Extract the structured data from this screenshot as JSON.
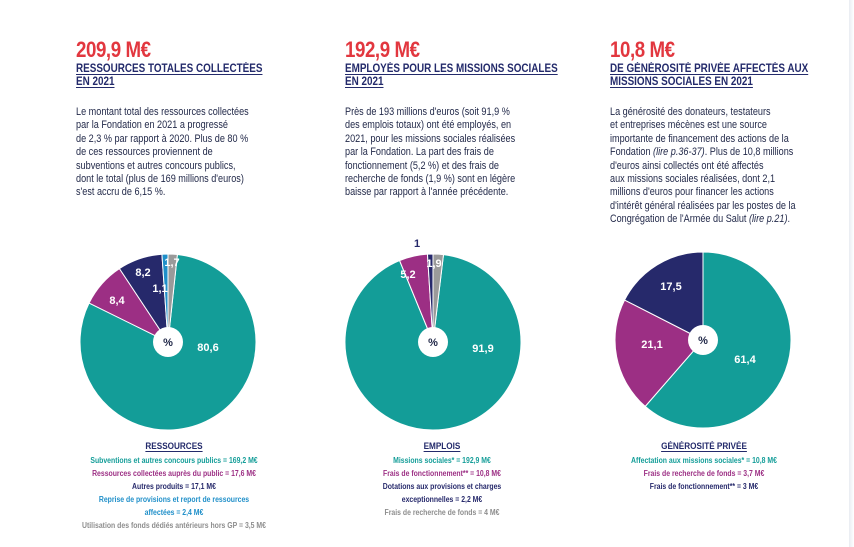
{
  "columns": [
    {
      "amount": "209,9 M€",
      "heading": [
        "RESSOURCES TOTALES COLLECTÉES",
        "EN 2021"
      ],
      "body": [
        "Le montant total des ressources collectées",
        "par la Fondation en 2021 a progressé",
        "de 2,3 % par rapport à 2020. Plus de 80 %",
        "de ces ressources proviennent de",
        "subventions et autres concours publics,",
        "dont le total (plus de 169 millions d'euros)",
        "s'est accru de 6,15 %."
      ],
      "center_label": "%",
      "legend_title": "RESSOURCES",
      "legend": [
        {
          "text": "Subventions et autres concours publics = 169,2 M€",
          "color": "#139d98"
        },
        {
          "text": "Ressources collectées auprès du public = 17,6 M€",
          "color": "#9c2f84"
        },
        {
          "text": "Autres produits = 17,1 M€",
          "color": "#26296b"
        },
        {
          "text": "Reprise de provisions et report de ressources",
          "color": "#1f8fc9"
        },
        {
          "text": "affectées = 2,4 M€",
          "color": "#1f8fc9"
        },
        {
          "text": "Utilisation des fonds dédiés antérieurs hors GP = 3,5 M€",
          "color": "#8d8d8d"
        }
      ]
    },
    {
      "amount": "192,9 M€",
      "heading": [
        "EMPLOYÉS POUR LES MISSIONS SOCIALES",
        "EN 2021"
      ],
      "body": [
        "Près de 193 millions d'euros (soit 91,9 %",
        "des emplois totaux) ont été employés, en",
        "2021, pour les missions sociales réalisées",
        "par la Fondation. La part des frais de",
        "fonctionnement (5,2 %) et des frais de",
        "recherche de fonds (1,9 %) sont en légère",
        "baisse par rapport à l'année précédente."
      ],
      "center_label": "%",
      "legend_title": "EMPLOIS",
      "legend": [
        {
          "text": "Missions sociales* = 192,9 M€",
          "color": "#139d98"
        },
        {
          "text": "Frais de fonctionnement** = 10,8 M€",
          "color": "#9c2f84"
        },
        {
          "text": "Dotations aux provisions et charges",
          "color": "#26296b"
        },
        {
          "text": "exceptionnelles = 2,2 M€",
          "color": "#26296b"
        },
        {
          "text": "Frais de recherche de fonds = 4 M€",
          "color": "#8d8d8d"
        }
      ]
    },
    {
      "amount": "10,8 M€",
      "heading": [
        "DE GÉNÉROSITÉ PRIVÉE AFFECTÉS AUX",
        "MISSIONS SOCIALES EN 2021"
      ],
      "body": [
        "La générosité des donateurs, testateurs",
        "et entreprises mécènes est une source",
        "importante de financement des actions de la",
        "Fondation |(lire p.36-37)|. Plus de 10,8 millions",
        "d'euros ainsi collectés ont été affectés",
        "aux missions sociales réalisées, dont 2,1",
        "millions d'euros pour financer les actions",
        "d'intérêt général réalisées par les postes de la",
        "Congrégation de l'Armée du Salut |(lire p.21)|."
      ],
      "center_label": "%",
      "legend_title": "GÉNÉROSITÉ PRIVÉE",
      "legend": [
        {
          "text": "Affectation aux missions sociales* = 10,8 M€",
          "color": "#139d98"
        },
        {
          "text": "Frais de recherche de fonds = 3,7 M€",
          "color": "#9c2f84"
        },
        {
          "text": "Frais de fonctionnement** = 3 M€",
          "color": "#26296b"
        }
      ]
    }
  ],
  "chart_data": [
    {
      "type": "pie",
      "title": "RESSOURCES",
      "unit": "%",
      "slices": [
        {
          "label": "Subventions et autres concours publics",
          "value": 80.6,
          "display": "80,6",
          "color": "#139d98"
        },
        {
          "label": "Ressources collectées auprès du public",
          "value": 8.4,
          "display": "8,4",
          "color": "#9c2f84"
        },
        {
          "label": "Autres produits",
          "value": 8.2,
          "display": "8,2",
          "color": "#26296b"
        },
        {
          "label": "Reprise de provisions et report de ressources affectées",
          "value": 1.1,
          "display": "1,1",
          "color": "#1f8fc9"
        },
        {
          "label": "Utilisation des fonds dédiés antérieurs hors GP",
          "value": 1.7,
          "display": "1,7",
          "color": "#9a9a9a"
        }
      ]
    },
    {
      "type": "pie",
      "title": "EMPLOIS",
      "unit": "%",
      "slices": [
        {
          "label": "Missions sociales",
          "value": 91.9,
          "display": "91,9",
          "color": "#139d98"
        },
        {
          "label": "Frais de fonctionnement",
          "value": 5.2,
          "display": "5,2",
          "color": "#9c2f84"
        },
        {
          "label": "Dotations aux provisions et charges exceptionnelles",
          "value": 1,
          "display": "1",
          "color": "#26296b"
        },
        {
          "label": "Frais de recherche de fonds",
          "value": 1.9,
          "display": "1,9",
          "color": "#9a9a9a"
        }
      ]
    },
    {
      "type": "pie",
      "title": "GÉNÉROSITÉ PRIVÉE",
      "unit": "%",
      "slices": [
        {
          "label": "Affectation aux missions sociales",
          "value": 61.4,
          "display": "61,4",
          "color": "#139d98"
        },
        {
          "label": "Frais de recherche de fonds",
          "value": 21.1,
          "display": "21,1",
          "color": "#9c2f84"
        },
        {
          "label": "Frais de fonctionnement",
          "value": 17.5,
          "display": "17,5",
          "color": "#26296b"
        }
      ]
    }
  ]
}
